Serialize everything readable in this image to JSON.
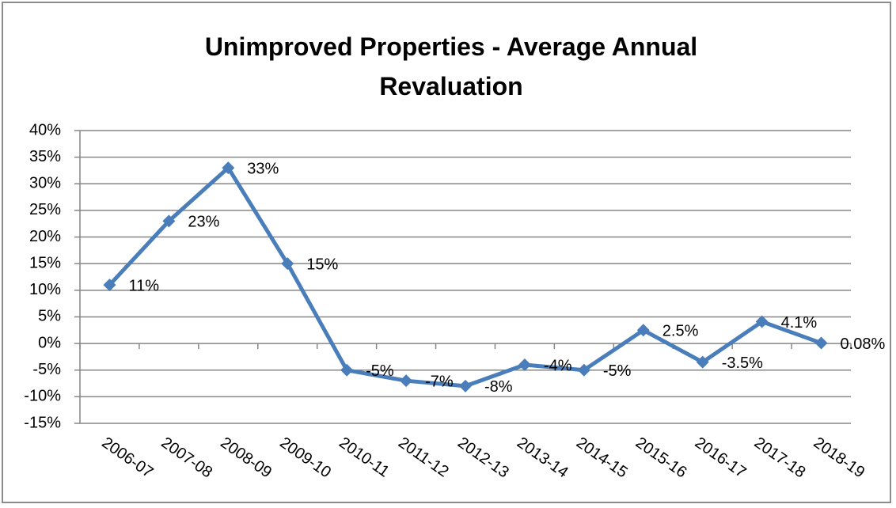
{
  "chart_data": {
    "type": "line",
    "title": "Unimproved Properties - Average Annual Revaluation",
    "categories": [
      "2006-07",
      "2007-08",
      "2008-09",
      "2009-10",
      "2010-11",
      "2011-12",
      "2012-13",
      "2013-14",
      "2014-15",
      "2015-16",
      "2016-17",
      "2017-18",
      "2018-19"
    ],
    "values": [
      11,
      23,
      33,
      15,
      -5,
      -7,
      -8,
      -4,
      -5,
      2.5,
      -3.5,
      4.1,
      0.08
    ],
    "value_labels": [
      "11%",
      "23%",
      "33%",
      "15%",
      "-5%",
      "-7%",
      "-8%",
      "-4%",
      "-5%",
      "2.5%",
      "-3.5%",
      "4.1%",
      "0.08%"
    ],
    "color": "#4a7ebb",
    "ylim": [
      -15,
      40
    ],
    "yticks": [
      {
        "value": -15,
        "label": "-15%"
      },
      {
        "value": -10,
        "label": "-10%"
      },
      {
        "value": -5,
        "label": "-5%"
      },
      {
        "value": 0,
        "label": "0%"
      },
      {
        "value": 5,
        "label": "5%"
      },
      {
        "value": 10,
        "label": "10%"
      },
      {
        "value": 15,
        "label": "15%"
      },
      {
        "value": 20,
        "label": "20%"
      },
      {
        "value": 25,
        "label": "25%"
      },
      {
        "value": 30,
        "label": "30%"
      },
      {
        "value": 35,
        "label": "35%"
      },
      {
        "value": 40,
        "label": "40%"
      }
    ],
    "grid": true
  }
}
